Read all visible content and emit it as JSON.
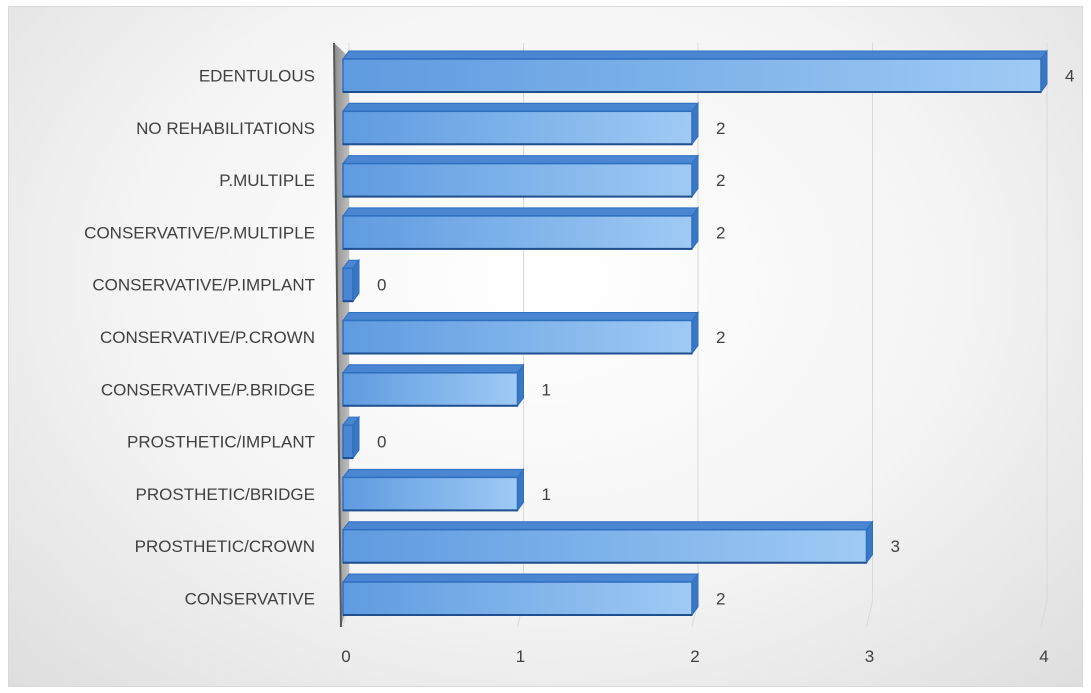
{
  "chart_data": {
    "type": "bar",
    "orientation": "horizontal",
    "style": "3d",
    "title": "",
    "xlabel": "",
    "ylabel": "",
    "categories": [
      "CONSERVATIVE",
      "PROSTHETIC/CROWN",
      "PROSTHETIC/BRIDGE",
      "PROSTHETIC/IMPLANT",
      "CONSERVATIVE/P.BRIDGE",
      "CONSERVATIVE/P.CROWN",
      "CONSERVATIVE/P.IMPLANT",
      "CONSERVATIVE/P.MULTIPLE",
      "P.MULTIPLE",
      "NO REHABILITATIONS",
      "EDENTULOUS"
    ],
    "values": [
      2,
      3,
      1,
      0,
      1,
      2,
      0,
      2,
      2,
      2,
      4
    ],
    "value_labels": [
      "2",
      "3",
      "1",
      "0",
      "1",
      "2",
      "0",
      "2",
      "2",
      "2",
      "4"
    ],
    "xlim": [
      0,
      4
    ],
    "x_ticks": [
      "0",
      "1",
      "2",
      "3",
      "4"
    ],
    "grid": true,
    "legend": "none",
    "colors": {
      "bar_front": "#6fa8e6",
      "bar_light": "#9fcaf4",
      "bar_edge": "#2e6fbf",
      "bar_top": "#4a86d1",
      "bar_end": "#3b78c4",
      "axis_wall": "#a6a6a6",
      "axis_line": "#595959",
      "gridline": "#d9d9d9",
      "text": "#404040"
    }
  }
}
